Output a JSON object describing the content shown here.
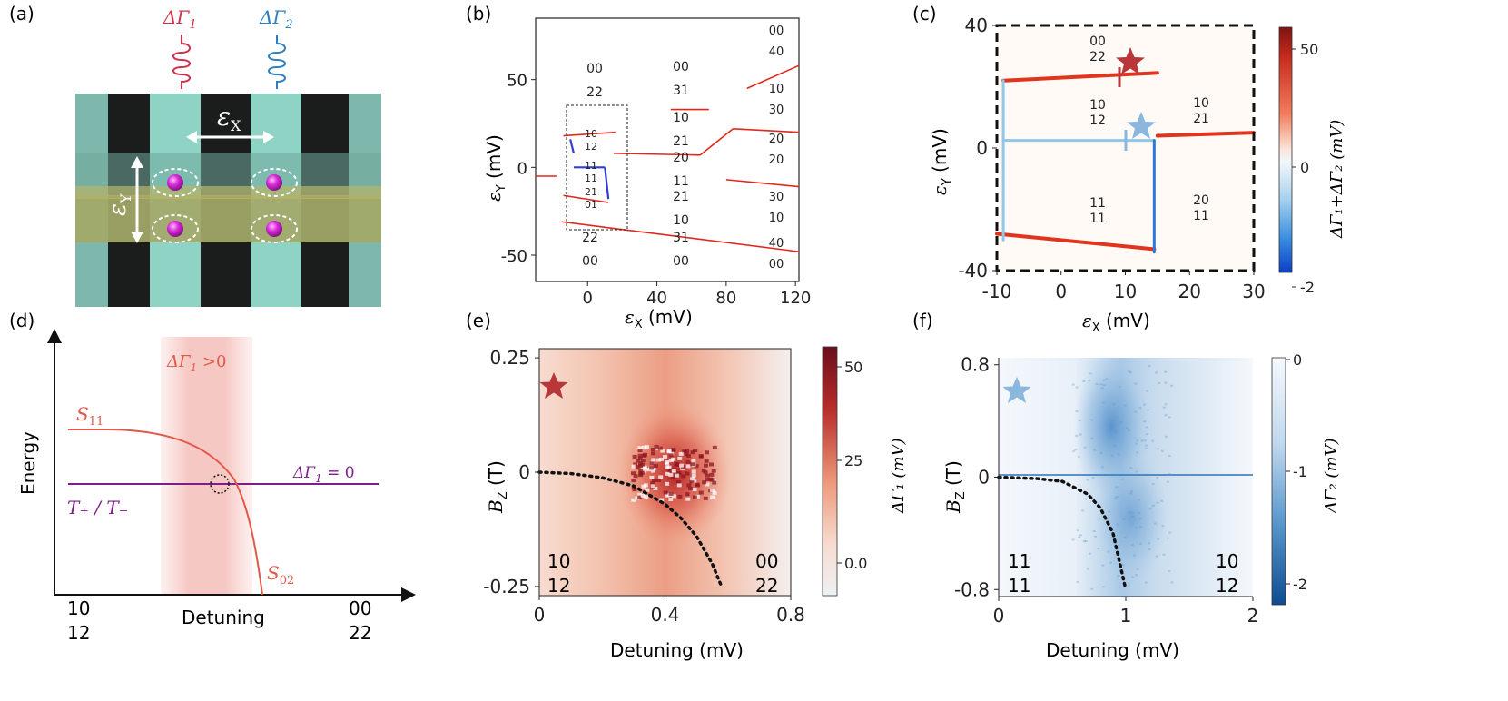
{
  "figure": {
    "a": {
      "tag": "(a)",
      "res1": "ΔΓ",
      "res1_sub": "1",
      "res2": "ΔΓ",
      "res2_sub": "2",
      "eps_x": "ε",
      "eps_x_sub": "X",
      "eps_y": "ε",
      "eps_y_sub": "Y"
    },
    "b": {
      "tag": "(b)",
      "xlabel": "ε",
      "xlabel_sub": "X",
      "xlabel_unit": " (mV)",
      "ylabel": "ε",
      "ylabel_sub": "Y",
      "ylabel_unit": " (mV)",
      "xticks": [
        "0",
        "40",
        "80",
        "120"
      ],
      "yticks": [
        "50",
        "0",
        "-50"
      ],
      "states": [
        {
          "top": "00",
          "bot": "22"
        },
        {
          "top": "00",
          "bot": "31"
        },
        {
          "top": "00",
          "bot": "40"
        },
        {
          "top": "10",
          "bot": "21"
        },
        {
          "top": "10",
          "bot": "30"
        },
        {
          "top": "20",
          "bot": "11"
        },
        {
          "top": "20",
          "bot": "20"
        },
        {
          "top": "21",
          "bot": "10"
        },
        {
          "top": "30",
          "bot": "10"
        },
        {
          "top": "22",
          "bot": "00"
        },
        {
          "top": "31",
          "bot": "00"
        },
        {
          "top": "40",
          "bot": "00"
        },
        {
          "top": "10",
          "bot": "12"
        },
        {
          "top": "11",
          "bot": "11"
        },
        {
          "top": "21",
          "bot": "01"
        }
      ]
    },
    "c": {
      "tag": "(c)",
      "xlabel": "ε",
      "xlabel_sub": "X",
      "xlabel_unit": " (mV)",
      "ylabel": "ε",
      "ylabel_sub": "Y",
      "ylabel_unit": " (mV)",
      "xticks": [
        "-10",
        "0",
        "10",
        "20",
        "30"
      ],
      "yticks": [
        "40",
        "0",
        "-40"
      ],
      "cbar_ticks": [
        "50",
        "0",
        "-2"
      ],
      "cbar_label": "ΔΓ₁+ΔΓ₂ (mV)",
      "states": [
        {
          "top": "00",
          "bot": "22"
        },
        {
          "top": "10",
          "bot": "12"
        },
        {
          "top": "10",
          "bot": "21"
        },
        {
          "top": "11",
          "bot": "11"
        },
        {
          "top": "20",
          "bot": "11"
        }
      ]
    },
    "d": {
      "tag": "(d)",
      "energy": "Energy",
      "band": "ΔΓ",
      "band_sub": "1",
      "band_cond": " >0",
      "s11": "S",
      "s11_sub": "11",
      "s02": "S",
      "s02_sub": "02",
      "zero": "ΔΓ",
      "zero_sub": "1",
      "zero_cond": " = 0",
      "triplet": "T₊ / T₋",
      "detuning": "Detuning",
      "left_top": "10",
      "left_bot": "12",
      "right_top": "00",
      "right_bot": "22"
    },
    "e": {
      "tag": "(e)",
      "xlabel": "Detuning  (mV)",
      "ylabel": "B",
      "ylabel_sub": "Z",
      "ylabel_unit": " (T)",
      "xticks": [
        "0",
        "0.4",
        "0.8"
      ],
      "yticks": [
        "0.25",
        "0",
        "-0.25"
      ],
      "cbar_ticks": [
        "50",
        "25",
        "0.0"
      ],
      "cbar_label": "ΔΓ₁ (mV)",
      "left_top": "10",
      "left_bot": "12",
      "right_top": "00",
      "right_bot": "22"
    },
    "f": {
      "tag": "(f)",
      "xlabel": "Detuning  (mV)",
      "ylabel": "B",
      "ylabel_sub": "Z",
      "ylabel_unit": " (T)",
      "xticks": [
        "0",
        "1",
        "2"
      ],
      "yticks": [
        "0.8",
        "0",
        "-0.8"
      ],
      "cbar_ticks": [
        "0",
        "-1",
        "-2"
      ],
      "cbar_label": "ΔΓ₂ (mV)",
      "left_top": "11",
      "left_bot": "11",
      "right_top": "10",
      "right_bot": "12"
    },
    "colors": {
      "red": "#e0281c",
      "blue": "#2f3fd0",
      "lightblue": "#8fbfe6",
      "star_red": "#b9373b",
      "star_blue": "#8bb6dd",
      "purple": "#7a1f8a",
      "curve_red": "#e05a4a",
      "teal": "#8ed5c6",
      "yellow": "#aaa45a",
      "magenta": "#cc22cc"
    }
  },
  "chart_data": [
    {
      "panel": "b",
      "type": "line",
      "title": "",
      "xlabel": "εX (mV)",
      "ylabel": "εY (mV)",
      "xlim": [
        -30,
        122
      ],
      "ylim": [
        -65,
        85
      ],
      "series": [
        {
          "name": "red-1",
          "color": "red",
          "x": [
            -30,
            -18
          ],
          "y": [
            -5,
            -5
          ]
        },
        {
          "name": "red-2",
          "color": "red",
          "x": [
            -14,
            12
          ],
          "y": [
            -16,
            -20
          ]
        },
        {
          "name": "red-3",
          "color": "red",
          "x": [
            -15,
            25
          ],
          "y": [
            -31,
            -36
          ]
        },
        {
          "name": "red-4",
          "color": "red",
          "x": [
            -14,
            16
          ],
          "y": [
            18,
            20
          ]
        },
        {
          "name": "red-5",
          "color": "red",
          "x": [
            15,
            65
          ],
          "y": [
            8,
            7
          ]
        },
        {
          "name": "red-6",
          "color": "red",
          "x": [
            65,
            84
          ],
          "y": [
            7,
            22
          ]
        },
        {
          "name": "red-7",
          "color": "red",
          "x": [
            84,
            122
          ],
          "y": [
            22,
            20
          ]
        },
        {
          "name": "red-8",
          "color": "red",
          "x": [
            48,
            70
          ],
          "y": [
            33,
            33
          ]
        },
        {
          "name": "red-9",
          "color": "red",
          "x": [
            80,
            122
          ],
          "y": [
            -7,
            -11
          ]
        },
        {
          "name": "red-10",
          "color": "red",
          "x": [
            25,
            122
          ],
          "y": [
            -36,
            -48
          ]
        },
        {
          "name": "red-11",
          "color": "red",
          "x": [
            92,
            122
          ],
          "y": [
            45,
            58
          ]
        },
        {
          "name": "blue-1",
          "color": "blue",
          "x": [
            -10,
            -8
          ],
          "y": [
            16,
            8
          ]
        },
        {
          "name": "blue-2",
          "color": "blue",
          "x": [
            -8,
            10
          ],
          "y": [
            0,
            0
          ]
        },
        {
          "name": "blue-3",
          "color": "blue",
          "x": [
            10,
            12
          ],
          "y": [
            0,
            -18
          ]
        }
      ]
    },
    {
      "panel": "c",
      "type": "heatmap",
      "title": "",
      "xlabel": "εX (mV)",
      "ylabel": "εY (mV)",
      "xlim": [
        -10,
        30
      ],
      "ylim": [
        -40,
        40
      ],
      "colorbar": {
        "label": "ΔΓ1+ΔΓ2 (mV)",
        "range": [
          -2,
          50
        ]
      },
      "series": [
        {
          "name": "red-top",
          "color": "red",
          "x": [
            -9,
            15
          ],
          "y": [
            22,
            24.5
          ]
        },
        {
          "name": "red-right",
          "color": "red",
          "x": [
            15,
            30
          ],
          "y": [
            4,
            5
          ]
        },
        {
          "name": "red-bottom",
          "color": "red",
          "x": [
            -10,
            14.5
          ],
          "y": [
            -28,
            -33
          ]
        },
        {
          "name": "blue-h",
          "color": "lightblue",
          "x": [
            -9,
            14.5
          ],
          "y": [
            2.5,
            2.5
          ]
        },
        {
          "name": "blue-vleft",
          "color": "lightblue",
          "x": [
            -9,
            -9
          ],
          "y": [
            22,
            -30
          ]
        },
        {
          "name": "blue-vright",
          "color": "blue",
          "x": [
            14.5,
            14.5
          ],
          "y": [
            2.5,
            -34
          ]
        }
      ]
    },
    {
      "panel": "e",
      "type": "heatmap",
      "title": "",
      "xlabel": "Detuning  (mV)",
      "ylabel": "BZ (T)",
      "xlim": [
        0,
        0.8
      ],
      "ylim": [
        -0.27,
        0.27
      ],
      "colorbar": {
        "label": "ΔΓ1 (mV)",
        "range": [
          -8,
          57
        ]
      },
      "series": [
        {
          "name": "dotted-boundary",
          "x": [
            0.0,
            0.1,
            0.2,
            0.3,
            0.4,
            0.45,
            0.5,
            0.55,
            0.58
          ],
          "y": [
            0.0,
            -0.003,
            -0.012,
            -0.03,
            -0.07,
            -0.1,
            -0.14,
            -0.2,
            -0.25
          ]
        }
      ]
    },
    {
      "panel": "f",
      "type": "heatmap",
      "title": "",
      "xlabel": "Detuning  (mV)",
      "ylabel": "BZ (T)",
      "xlim": [
        0,
        2
      ],
      "ylim": [
        -0.85,
        0.85
      ],
      "colorbar": {
        "label": "ΔΓ2 (mV)",
        "range": [
          -2.2,
          0
        ]
      },
      "series": [
        {
          "name": "dotted-boundary",
          "x": [
            0.0,
            0.3,
            0.5,
            0.7,
            0.8,
            0.9,
            0.95,
            1.0
          ],
          "y": [
            0.0,
            -0.01,
            -0.03,
            -0.12,
            -0.22,
            -0.4,
            -0.6,
            -0.8
          ]
        }
      ]
    }
  ]
}
